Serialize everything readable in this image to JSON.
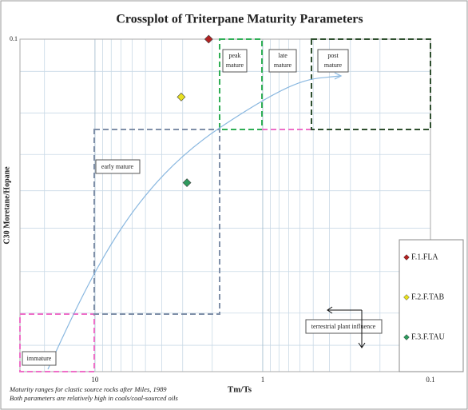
{
  "chart_data": {
    "type": "scatter",
    "title": "Crossplot of Triterpane Maturity Parameters",
    "x_label": "Tm/Ts",
    "y_label": "C30 Moretane/Hopane",
    "xlim": [
      28,
      0.1
    ],
    "ylim": [
      0.01,
      0.1
    ],
    "log_x": true,
    "log_y": true,
    "xticks": [
      10,
      1,
      0.1
    ],
    "yticks": [
      0.1
    ],
    "xminor_ticks": [
      20,
      9,
      8,
      7,
      6,
      5,
      4,
      3,
      2,
      0.9,
      0.8,
      0.7,
      0.6,
      0.5,
      0.4,
      0.3,
      0.2
    ],
    "yminor_ticks": [
      0.08,
      0.06,
      0.045,
      0.035,
      0.027,
      0.02,
      0.015,
      0.012
    ],
    "grid": true,
    "legend": "right",
    "series": [
      {
        "name": "F.1.FLA",
        "color": "#b22222",
        "x": [
          2.1
        ],
        "values": [
          0.1
        ]
      },
      {
        "name": "F.2.F.TAB",
        "color": "#e8e020",
        "x": [
          3.06
        ],
        "values": [
          0.067
        ]
      },
      {
        "name": "F.3.F.TAU",
        "color": "#2e9a5e",
        "x": [
          2.83
        ],
        "values": [
          0.037
        ]
      }
    ],
    "annotations": {
      "immature": "immature",
      "early": "early mature",
      "peak": [
        "peak",
        "mature"
      ],
      "late": [
        "late",
        "mature"
      ],
      "post": [
        "post",
        "mature"
      ],
      "terrestrial": "terrestrial plant influence"
    },
    "notes": [
      "Maturity ranges for clastic source rocks after Miles, 1989",
      "Both parameters are relatively high in coals/coal-sourced oils"
    ]
  }
}
